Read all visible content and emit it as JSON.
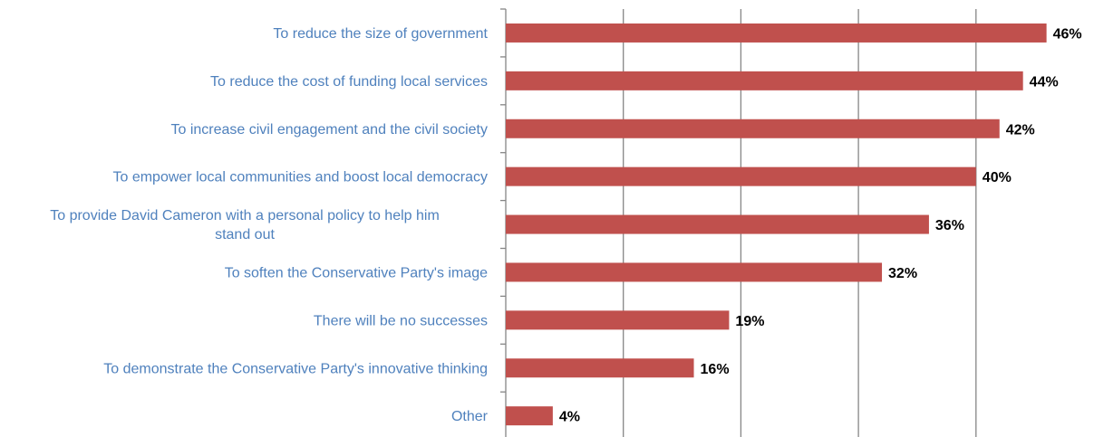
{
  "chart_data": {
    "type": "bar",
    "orientation": "horizontal",
    "categories": [
      [
        "To reduce the size of government"
      ],
      [
        "To reduce the cost of funding local services"
      ],
      [
        "To increase civil engagement and the civil society"
      ],
      [
        "To empower local communities and boost local democracy"
      ],
      [
        "To provide David Cameron with a personal policy to help him",
        "stand out"
      ],
      [
        "To soften the Conservative Party's image"
      ],
      [
        "There will be no successes"
      ],
      [
        "To demonstrate the Conservative Party's innovative thinking"
      ],
      [
        "Other"
      ]
    ],
    "values": [
      46,
      44,
      42,
      40,
      36,
      32,
      19,
      16,
      4
    ],
    "value_labels": [
      "46%",
      "44%",
      "42%",
      "40%",
      "36%",
      "32%",
      "19%",
      "16%",
      "4%"
    ],
    "xlim": [
      0,
      50
    ],
    "x_gridlines": [
      10,
      20,
      30,
      40
    ],
    "grid": true,
    "legend": "none",
    "bar_color": "#c0504d",
    "label_color": "#4f81bd",
    "gridline_color": "#868686"
  }
}
